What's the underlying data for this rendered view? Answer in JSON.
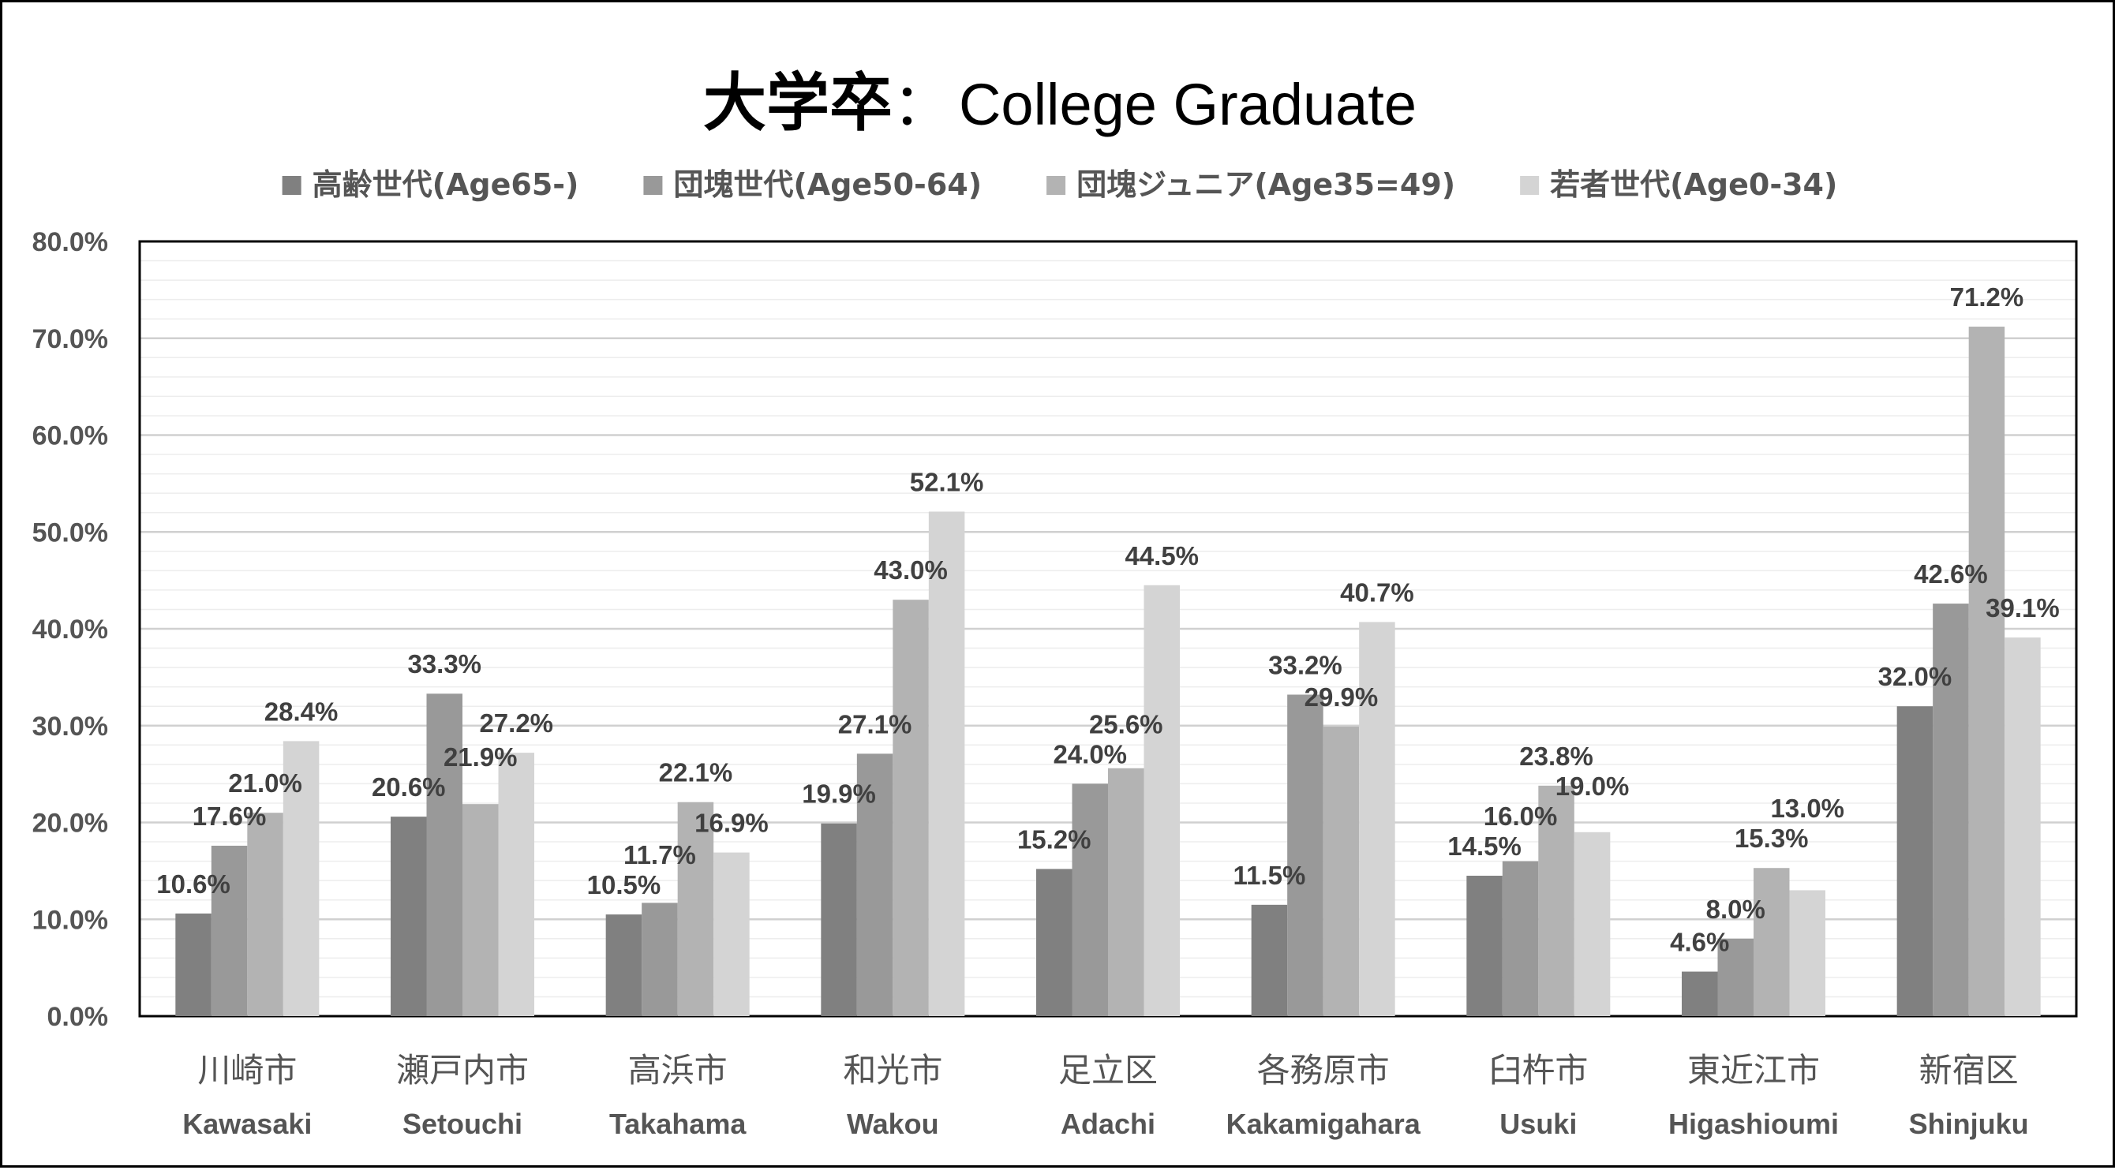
{
  "chart_data": {
    "type": "bar",
    "title_cjk": "大学卒",
    "title_sep": "：",
    "title_en": "College Graduate",
    "categories": [
      {
        "cjk": "川崎市",
        "en": "Kawasaki"
      },
      {
        "cjk": "瀬戸内市",
        "en": "Setouchi"
      },
      {
        "cjk": "高浜市",
        "en": "Takahama"
      },
      {
        "cjk": "和光市",
        "en": "Wakou"
      },
      {
        "cjk": "足立区",
        "en": "Adachi"
      },
      {
        "cjk": "各務原市",
        "en": "Kakamigahara"
      },
      {
        "cjk": "臼杵市",
        "en": "Usuki"
      },
      {
        "cjk": "東近江市",
        "en": "Higashioumi"
      },
      {
        "cjk": "新宿区",
        "en": "Shinjuku"
      }
    ],
    "series": [
      {
        "name": "高齢世代(Age65-)",
        "color": "#808080",
        "values": [
          10.6,
          20.6,
          10.5,
          19.9,
          15.2,
          11.5,
          14.5,
          4.6,
          32.0
        ]
      },
      {
        "name": "団塊世代(Age50-64)",
        "color": "#999999",
        "values": [
          17.6,
          33.3,
          11.7,
          27.1,
          24.0,
          33.2,
          16.0,
          8.0,
          42.6
        ]
      },
      {
        "name": "団塊ジュニア(Age35=49)",
        "color": "#b3b3b3",
        "values": [
          21.0,
          21.9,
          22.1,
          43.0,
          25.6,
          29.9,
          23.8,
          15.3,
          71.2
        ]
      },
      {
        "name": "若者世代(Age0-34)",
        "color": "#d4d4d4",
        "values": [
          28.4,
          27.2,
          16.9,
          52.1,
          44.5,
          40.7,
          19.0,
          13.0,
          39.1
        ]
      }
    ],
    "y_ticks": [
      "0.0%",
      "10.0%",
      "20.0%",
      "30.0%",
      "40.0%",
      "50.0%",
      "60.0%",
      "70.0%",
      "80.0%"
    ],
    "ylim": [
      0,
      80
    ],
    "value_suffix": "%",
    "legend_position": "top",
    "grid": true
  }
}
